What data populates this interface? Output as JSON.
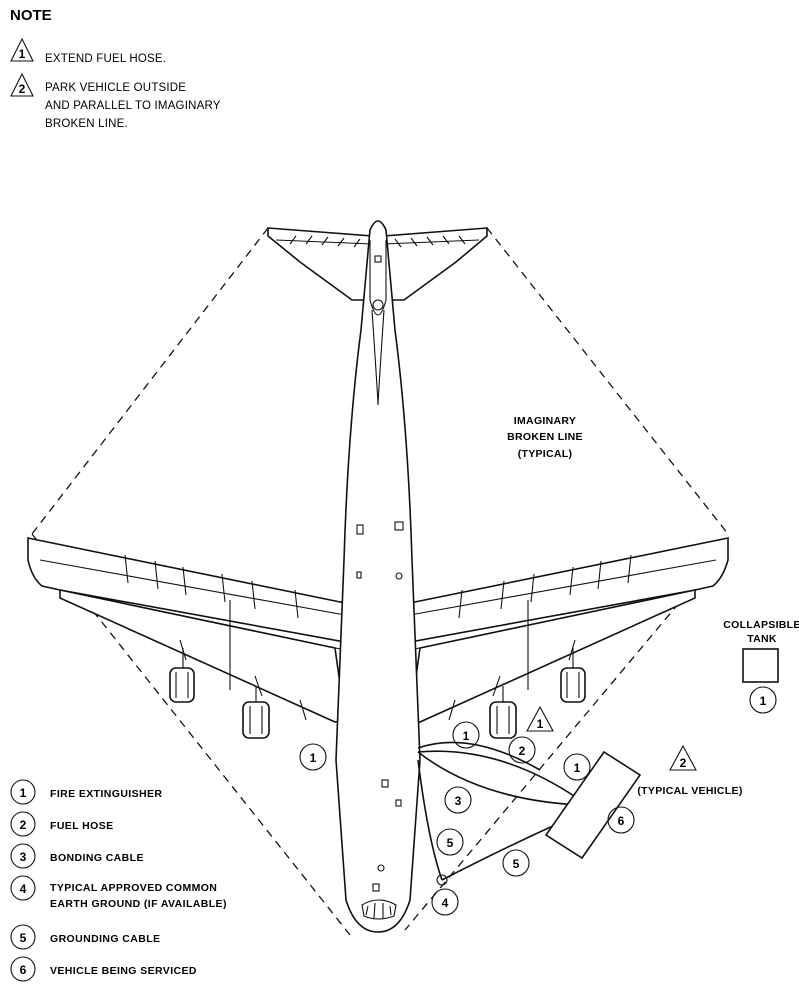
{
  "note": {
    "title": "NOTE",
    "items": [
      {
        "marker": "1",
        "lines": [
          "EXTEND FUEL HOSE."
        ]
      },
      {
        "marker": "2",
        "lines": [
          "PARK VEHICLE OUTSIDE",
          "AND PARALLEL TO IMAGINARY",
          "BROKEN LINE."
        ]
      }
    ]
  },
  "labels": {
    "imaginary_line": [
      "IMAGINARY",
      "BROKEN LINE",
      "(TYPICAL)"
    ],
    "collapsible_tank": [
      "COLLAPSIBLE",
      "TANK"
    ],
    "typical_vehicle": "(TYPICAL VEHICLE)"
  },
  "callouts": {
    "fire_ext_left": "1",
    "fire_ext_near": "1",
    "fire_ext_tank": "1",
    "fire_ext_vehicle": "1",
    "fuel_hose": "2",
    "bonding_cable": "3",
    "ground_point": "4",
    "grounding_cable_a": "5",
    "grounding_cable_b": "5",
    "vehicle": "6",
    "triangle_hose": "1",
    "triangle_vehicle": "2"
  },
  "legend": [
    {
      "num": "1",
      "lines": [
        "FIRE EXTINGUISHER"
      ]
    },
    {
      "num": "2",
      "lines": [
        "FUEL HOSE"
      ]
    },
    {
      "num": "3",
      "lines": [
        "BONDING CABLE"
      ]
    },
    {
      "num": "4",
      "lines": [
        "TYPICAL APPROVED COMMON",
        "EARTH GROUND (IF AVAILABLE)"
      ]
    },
    {
      "num": "5",
      "lines": [
        "GROUNDING CABLE"
      ]
    },
    {
      "num": "6",
      "lines": [
        "VEHICLE BEING SERVICED"
      ]
    }
  ]
}
